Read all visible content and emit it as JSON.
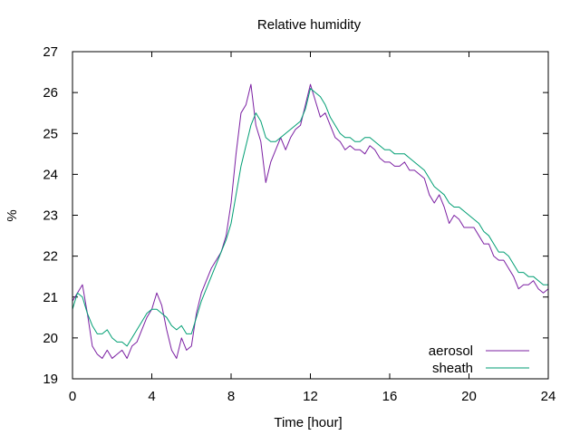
{
  "chart_data": {
    "type": "line",
    "title": "Relative humidity",
    "xlabel": "Time [hour]",
    "ylabel": "%",
    "xlim": [
      0,
      24
    ],
    "ylim": [
      19,
      27
    ],
    "xticks": [
      0,
      4,
      8,
      12,
      16,
      20,
      24
    ],
    "yticks": [
      19,
      20,
      21,
      22,
      23,
      24,
      25,
      26,
      27
    ],
    "grid": false,
    "legend_position": "bottom-right",
    "series": [
      {
        "name": "aerosol",
        "color": "#7b1fa2",
        "x": [
          0,
          0.25,
          0.5,
          0.75,
          1,
          1.25,
          1.5,
          1.75,
          2,
          2.25,
          2.5,
          2.75,
          3,
          3.25,
          3.5,
          3.75,
          4,
          4.25,
          4.5,
          4.75,
          5,
          5.25,
          5.5,
          5.75,
          6,
          6.25,
          6.5,
          6.75,
          7,
          7.25,
          7.5,
          7.75,
          8,
          8.25,
          8.5,
          8.75,
          9,
          9.25,
          9.5,
          9.75,
          10,
          10.25,
          10.5,
          10.75,
          11,
          11.25,
          11.5,
          11.75,
          12,
          12.25,
          12.5,
          12.75,
          13,
          13.25,
          13.5,
          13.75,
          14,
          14.25,
          14.5,
          14.75,
          15,
          15.25,
          15.5,
          15.75,
          16,
          16.25,
          16.5,
          16.75,
          17,
          17.25,
          17.5,
          17.75,
          18,
          18.25,
          18.5,
          18.75,
          19,
          19.25,
          19.5,
          19.75,
          20,
          20.25,
          20.5,
          20.75,
          21,
          21.25,
          21.5,
          21.75,
          22,
          22.25,
          22.5,
          22.75,
          23,
          23.25,
          23.5,
          23.75,
          24
        ],
        "y": [
          20.9,
          21.1,
          21.3,
          20.6,
          19.8,
          19.6,
          19.5,
          19.7,
          19.5,
          19.6,
          19.7,
          19.5,
          19.8,
          19.9,
          20.2,
          20.5,
          20.7,
          21.1,
          20.8,
          20.2,
          19.7,
          19.5,
          20,
          19.7,
          19.8,
          20.6,
          21.1,
          21.4,
          21.7,
          21.9,
          22.1,
          22.5,
          23.3,
          24.5,
          25.5,
          25.7,
          26.2,
          25.2,
          24.8,
          23.8,
          24.3,
          24.6,
          24.9,
          24.6,
          24.9,
          25.1,
          25.2,
          25.7,
          26.2,
          25.8,
          25.4,
          25.5,
          25.2,
          24.9,
          24.8,
          24.6,
          24.7,
          24.6,
          24.6,
          24.5,
          24.7,
          24.6,
          24.4,
          24.3,
          24.3,
          24.2,
          24.2,
          24.3,
          24.1,
          24.1,
          24,
          23.9,
          23.5,
          23.3,
          23.5,
          23.2,
          22.8,
          23,
          22.9,
          22.7,
          22.7,
          22.7,
          22.5,
          22.3,
          22.3,
          22,
          21.9,
          21.9,
          21.7,
          21.5,
          21.2,
          21.3,
          21.3,
          21.4,
          21.2,
          21.1,
          21.2
        ]
      },
      {
        "name": "sheath",
        "color": "#009e73",
        "x": [
          0,
          0.25,
          0.5,
          0.75,
          1,
          1.25,
          1.5,
          1.75,
          2,
          2.25,
          2.5,
          2.75,
          3,
          3.25,
          3.5,
          3.75,
          4,
          4.25,
          4.5,
          4.75,
          5,
          5.25,
          5.5,
          5.75,
          6,
          6.25,
          6.5,
          6.75,
          7,
          7.25,
          7.5,
          7.75,
          8,
          8.25,
          8.5,
          8.75,
          9,
          9.25,
          9.5,
          9.75,
          10,
          10.25,
          10.5,
          10.75,
          11,
          11.25,
          11.5,
          11.75,
          12,
          12.25,
          12.5,
          12.75,
          13,
          13.25,
          13.5,
          13.75,
          14,
          14.25,
          14.5,
          14.75,
          15,
          15.25,
          15.5,
          15.75,
          16,
          16.25,
          16.5,
          16.75,
          17,
          17.25,
          17.5,
          17.75,
          18,
          18.25,
          18.5,
          18.75,
          19,
          19.25,
          19.5,
          19.75,
          20,
          20.25,
          20.5,
          20.75,
          21,
          21.25,
          21.5,
          21.75,
          22,
          22.25,
          22.5,
          22.75,
          23,
          23.25,
          23.5,
          23.75,
          24
        ],
        "y": [
          20.7,
          21.1,
          21,
          20.6,
          20.3,
          20.1,
          20.1,
          20.2,
          20,
          19.9,
          19.9,
          19.8,
          20,
          20.2,
          20.4,
          20.6,
          20.7,
          20.7,
          20.6,
          20.5,
          20.3,
          20.2,
          20.3,
          20.1,
          20.1,
          20.5,
          20.9,
          21.2,
          21.5,
          21.8,
          22.1,
          22.4,
          22.8,
          23.5,
          24.2,
          24.7,
          25.2,
          25.5,
          25.3,
          24.9,
          24.8,
          24.8,
          24.9,
          25,
          25.1,
          25.2,
          25.3,
          25.6,
          26.1,
          26,
          25.9,
          25.7,
          25.4,
          25.2,
          25,
          24.9,
          24.9,
          24.8,
          24.8,
          24.9,
          24.9,
          24.8,
          24.7,
          24.6,
          24.6,
          24.5,
          24.5,
          24.5,
          24.4,
          24.3,
          24.2,
          24.1,
          23.9,
          23.7,
          23.6,
          23.5,
          23.3,
          23.2,
          23.2,
          23.1,
          23,
          22.9,
          22.8,
          22.6,
          22.5,
          22.3,
          22.1,
          22.1,
          22,
          21.8,
          21.6,
          21.6,
          21.5,
          21.5,
          21.4,
          21.3,
          21.3
        ]
      }
    ]
  }
}
